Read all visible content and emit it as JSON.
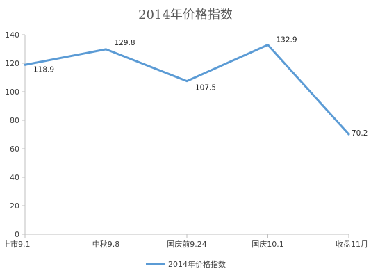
{
  "chart_data": {
    "type": "line",
    "title": "2014年价格指数",
    "categories": [
      "上市9.1",
      "中秋9.8",
      "国庆前9.24",
      "国庆10.1",
      "收盘11月"
    ],
    "series": [
      {
        "name": "2014年价格指数",
        "values": [
          118.9,
          129.8,
          107.5,
          132.9,
          70.2
        ]
      }
    ],
    "data_labels": [
      "118.9",
      "129.8",
      "107.5",
      "132.9",
      "70.2"
    ],
    "yticks": [
      "0",
      "20",
      "40",
      "60",
      "80",
      "100",
      "120",
      "140"
    ],
    "ylim": [
      0,
      140
    ],
    "grid": false,
    "legend_position": "bottom",
    "line_color": "#5b9bd5",
    "axis_color": "#bfbfbf"
  }
}
